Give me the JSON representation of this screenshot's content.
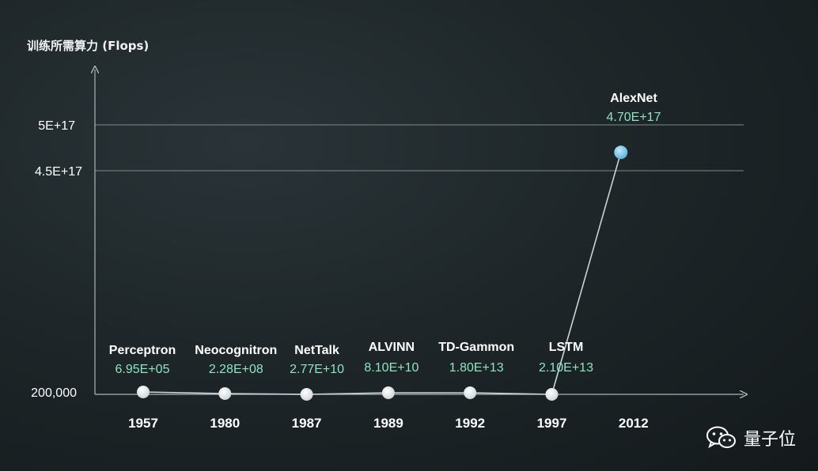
{
  "chart_data": {
    "type": "line",
    "ylabel": "训练所需算力 (Flops)",
    "xlabel": "",
    "title": "",
    "x": [
      "1957",
      "1980",
      "1987",
      "1989",
      "1992",
      "1997",
      "2012"
    ],
    "y_tick_labels": [
      "5E+17",
      "4.5E+17",
      "200,000"
    ],
    "y_tick_values": [
      5e+17,
      4.5e+17,
      200000
    ],
    "grid": true,
    "points": [
      {
        "name": "Perceptron",
        "value": 695000.0,
        "value_label": "6.95E+05"
      },
      {
        "name": "Neocognitron",
        "value": 228000000.0,
        "value_label": "2.28E+08"
      },
      {
        "name": "NetTalk",
        "value": 27700000000.0,
        "value_label": "2.77E+10"
      },
      {
        "name": "ALVINN",
        "value": 81000000000.0,
        "value_label": "8.10E+10"
      },
      {
        "name": "TD-Gammon",
        "value": 18000000000000.0,
        "value_label": "1.80E+13"
      },
      {
        "name": "LSTM",
        "value": 21000000000000.0,
        "value_label": "2.10E+13"
      },
      {
        "name": "AlexNet",
        "value": 4.7e+17,
        "value_label": "4.70E+17"
      }
    ],
    "colors": {
      "normal_point": "#f0f0f0",
      "highlight_point": "#7fc8ea",
      "value_text": "#8fe3c2",
      "line": "#c8d4d8"
    }
  },
  "watermark": {
    "icon": "wechat-icon",
    "text": "量子位"
  }
}
